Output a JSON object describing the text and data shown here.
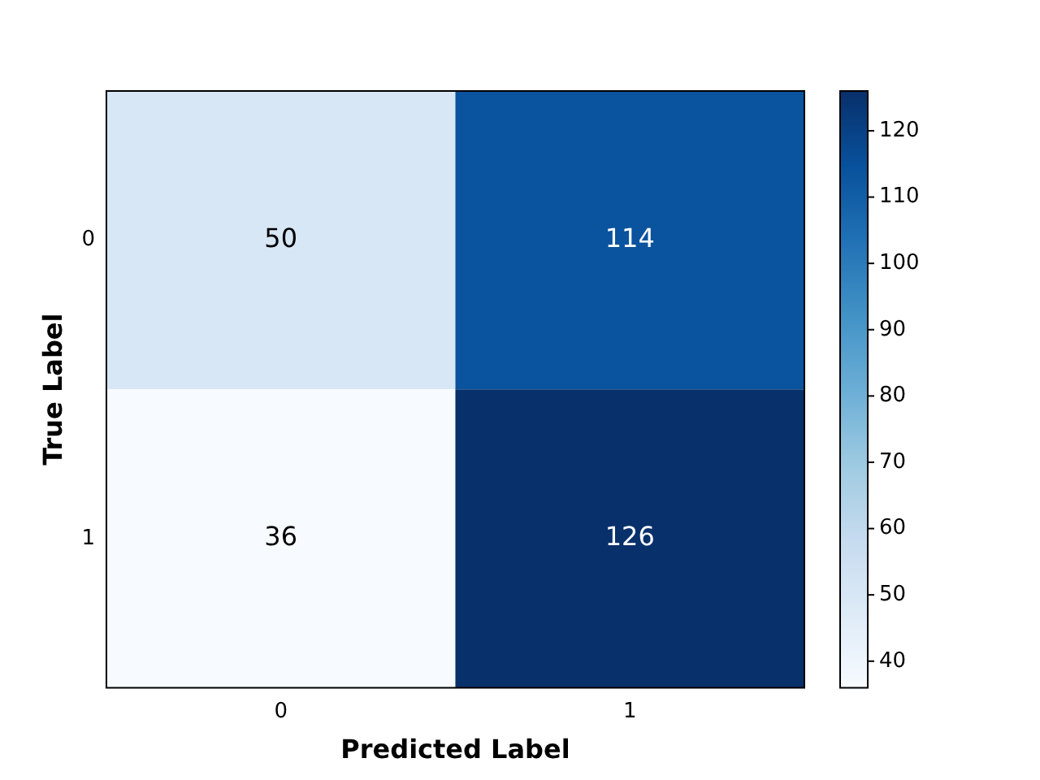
{
  "chart_data": {
    "type": "heatmap",
    "xlabel": "Predicted Label",
    "ylabel": "True Label",
    "categories": [
      "0",
      "1"
    ],
    "y_categories": [
      "0",
      "1"
    ],
    "cells": [
      [
        50,
        114
      ],
      [
        36,
        126
      ]
    ],
    "clim": [
      36,
      126
    ],
    "cticks": [
      40,
      50,
      60,
      70,
      80,
      90,
      100,
      110,
      120
    ],
    "data_labels": true,
    "grid": false
  }
}
